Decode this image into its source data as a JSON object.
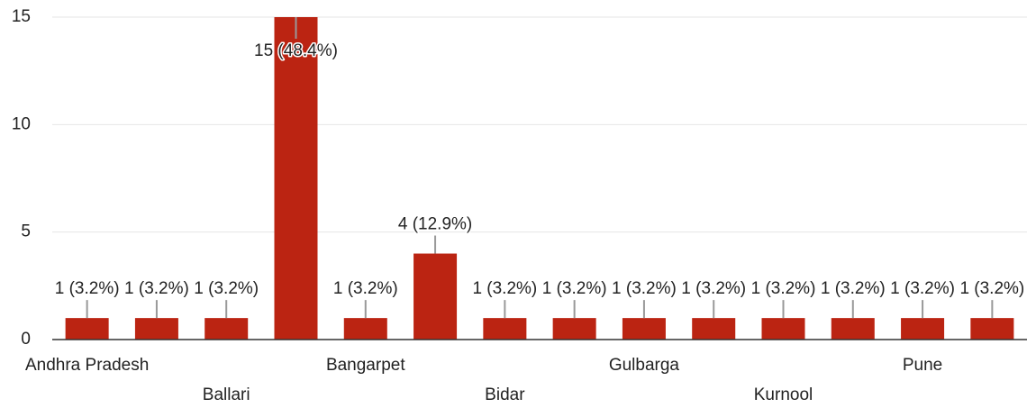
{
  "chart_data": {
    "type": "bar",
    "categories": [
      "Andhra Pradesh",
      null,
      "Ballari",
      null,
      "Bangarpet",
      null,
      "Bidar",
      null,
      "Gulbarga",
      null,
      "Kurnool",
      null,
      "Pune",
      null
    ],
    "values": [
      1,
      1,
      1,
      15,
      1,
      4,
      1,
      1,
      1,
      1,
      1,
      1,
      1,
      1
    ],
    "value_labels": [
      "1 (3.2%)",
      "1 (3.2%)",
      "1 (3.2%)",
      "15 (48.4%)",
      "1 (3.2%)",
      "4 (12.9%)",
      "1 (3.2%)",
      "1 (3.2%)",
      "1 (3.2%)",
      "1 (3.2%)",
      "1 (3.2%)",
      "1 (3.2%)",
      "1 (3.2%)",
      "1 (3.2%)"
    ],
    "color": "#bb2412",
    "ylim": [
      0,
      15
    ],
    "yticks": [
      0,
      5,
      10,
      15
    ],
    "grid": true
  }
}
